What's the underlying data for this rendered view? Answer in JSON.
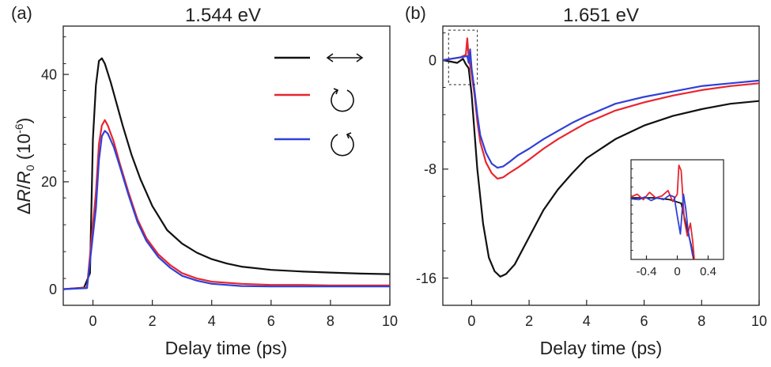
{
  "chart_data": [
    {
      "type": "line",
      "panel_label": "(a)",
      "title": "1.544 eV",
      "xlabel": "Delay time (ps)",
      "ylabel_parts": [
        "Δ",
        "R",
        "/",
        "R",
        "0",
        " (10",
        "-6",
        ")"
      ],
      "xlim": [
        -1,
        10
      ],
      "ylim": [
        -3,
        49
      ],
      "xticks": [
        0,
        2,
        4,
        6,
        8,
        10
      ],
      "yticks": [
        0,
        20,
        40
      ],
      "grid": false,
      "legend_location": "top-right",
      "legend": [
        {
          "color": "#111111",
          "symbol": "linear-double-arrow-icon"
        },
        {
          "color": "#e8262f",
          "symbol": "counterclockwise-circle-icon"
        },
        {
          "color": "#3040d8",
          "symbol": "clockwise-circle-icon"
        }
      ],
      "series": [
        {
          "color": "#111111",
          "x": [
            -1,
            -0.3,
            -0.1,
            0,
            0.1,
            0.2,
            0.3,
            0.4,
            0.6,
            0.8,
            1.0,
            1.3,
            1.6,
            2.0,
            2.5,
            3.0,
            3.5,
            4.0,
            4.5,
            5.0,
            6.0,
            7.0,
            8.0,
            9.0,
            10.0
          ],
          "y": [
            0,
            0.3,
            3,
            28,
            38,
            42.5,
            43,
            42,
            38.5,
            34.5,
            30.5,
            25,
            20.5,
            15.5,
            11,
            8.5,
            6.8,
            5.6,
            4.8,
            4.2,
            3.6,
            3.3,
            3.1,
            2.9,
            2.8
          ]
        },
        {
          "color": "#e8262f",
          "x": [
            -1,
            -0.2,
            0.1,
            0.2,
            0.3,
            0.4,
            0.5,
            0.7,
            0.9,
            1.2,
            1.5,
            1.8,
            2.2,
            2.6,
            3.0,
            3.5,
            4.0,
            5.0,
            6.0,
            7.0,
            8.0,
            9.0,
            10.0
          ],
          "y": [
            0,
            0.3,
            18,
            27,
            30.5,
            31.5,
            30.5,
            27.5,
            23.5,
            18,
            13,
            9.5,
            6.5,
            4.5,
            3,
            2,
            1.4,
            1.0,
            0.8,
            0.8,
            0.7,
            0.7,
            0.7
          ]
        },
        {
          "color": "#3040d8",
          "x": [
            -1,
            -0.2,
            0.1,
            0.2,
            0.3,
            0.4,
            0.5,
            0.7,
            0.9,
            1.2,
            1.5,
            1.8,
            2.2,
            2.6,
            3.0,
            3.5,
            4.0,
            5.0,
            6.0,
            7.0,
            8.0,
            9.0,
            10.0
          ],
          "y": [
            0,
            0.2,
            15,
            24,
            28.5,
            29.5,
            29,
            26.5,
            23,
            17.5,
            12.5,
            9,
            6,
            4,
            2.5,
            1.6,
            1.0,
            0.6,
            0.5,
            0.5,
            0.5,
            0.5,
            0.5
          ]
        }
      ]
    },
    {
      "type": "line",
      "panel_label": "(b)",
      "title": "1.651 eV",
      "xlabel": "Delay time (ps)",
      "xlim": [
        -1,
        10
      ],
      "ylim": [
        -18,
        2.5
      ],
      "xticks": [
        0,
        2,
        4,
        6,
        8,
        10
      ],
      "yticks": [
        -16,
        -8,
        0
      ],
      "grid": false,
      "series": [
        {
          "color": "#111111",
          "x": [
            -1,
            -0.5,
            -0.3,
            -0.2,
            -0.1,
            0,
            0.2,
            0.4,
            0.6,
            0.8,
            1.0,
            1.2,
            1.5,
            2.0,
            2.5,
            3.0,
            3.5,
            4.0,
            5.0,
            6.0,
            7.0,
            8.0,
            9.0,
            10.0
          ],
          "y": [
            0,
            -0.2,
            0.1,
            -0.3,
            -0.6,
            -2.5,
            -8,
            -12,
            -14.5,
            -15.5,
            -15.9,
            -15.7,
            -15,
            -13,
            -11,
            -9.5,
            -8.3,
            -7.2,
            -5.8,
            -4.8,
            -4.1,
            -3.6,
            -3.2,
            -3.0
          ]
        },
        {
          "color": "#e8262f",
          "x": [
            -1,
            -0.4,
            -0.2,
            -0.15,
            -0.1,
            0,
            0.1,
            0.2,
            0.3,
            0.5,
            0.7,
            0.9,
            1.1,
            1.3,
            1.6,
            2.0,
            2.5,
            3.0,
            3.5,
            4.0,
            5.0,
            6.0,
            7.0,
            8.0,
            9.0,
            10.0
          ],
          "y": [
            0,
            0.2,
            0.4,
            1.6,
            0.2,
            -1,
            -2.5,
            -4.5,
            -6,
            -7.5,
            -8.3,
            -8.7,
            -8.6,
            -8.3,
            -7.9,
            -7.3,
            -6.5,
            -5.8,
            -5.2,
            -4.6,
            -3.7,
            -3.1,
            -2.6,
            -2.2,
            -1.9,
            -1.7
          ]
        },
        {
          "color": "#3040d8",
          "x": [
            -1,
            -0.4,
            -0.15,
            -0.1,
            -0.05,
            0,
            0.1,
            0.2,
            0.3,
            0.5,
            0.7,
            0.9,
            1.1,
            1.3,
            1.6,
            2.0,
            2.5,
            3.0,
            3.5,
            4.0,
            5.0,
            6.0,
            7.0,
            8.0,
            9.0,
            10.0
          ],
          "y": [
            0,
            0.2,
            0.3,
            -0.2,
            0.8,
            -0.6,
            -2.2,
            -4,
            -5.5,
            -6.8,
            -7.6,
            -7.9,
            -7.8,
            -7.5,
            -7.0,
            -6.5,
            -5.8,
            -5.2,
            -4.6,
            -4.1,
            -3.2,
            -2.7,
            -2.3,
            -1.9,
            -1.7,
            -1.5
          ]
        }
      ],
      "inset": {
        "xlim": [
          -0.6,
          0.6
        ],
        "ylim": [
          -4,
          1.5
        ],
        "xticks": [
          -0.4,
          0,
          0.4
        ],
        "xtick_labels": [
          "-0.4",
          "0",
          "0.4"
        ],
        "zoom_box": {
          "xlim": [
            -0.8,
            0.2
          ],
          "ylim": [
            -1.8,
            2.2
          ]
        },
        "series": [
          {
            "color": "#111111",
            "x": [
              -0.6,
              -0.3,
              -0.1,
              0.05,
              0.12,
              0.18,
              0.22
            ],
            "y": [
              -0.6,
              -0.6,
              -0.7,
              -0.9,
              -2.2,
              -3.2,
              -4.2
            ]
          },
          {
            "color": "#e8262f",
            "x": [
              -0.6,
              -0.52,
              -0.44,
              -0.36,
              -0.28,
              -0.2,
              -0.12,
              -0.06,
              0.0,
              0.02,
              0.05,
              0.09,
              0.13,
              0.17,
              0.2,
              0.22
            ],
            "y": [
              -0.55,
              -0.4,
              -0.7,
              -0.3,
              -0.6,
              -0.5,
              -0.2,
              -0.8,
              -0.4,
              1.2,
              0.9,
              -1.8,
              -2.7,
              -2.0,
              -3.0,
              -4.0
            ]
          },
          {
            "color": "#3040d8",
            "x": [
              -0.6,
              -0.5,
              -0.42,
              -0.34,
              -0.26,
              -0.18,
              -0.1,
              -0.04,
              0.0,
              0.04,
              0.08,
              0.11,
              0.14,
              0.17,
              0.2
            ],
            "y": [
              -0.65,
              -0.7,
              -0.55,
              -0.75,
              -0.6,
              -0.7,
              -0.45,
              -0.55,
              -1.6,
              -2.6,
              -0.4,
              -1.2,
              -2.4,
              -3.1,
              -3.8
            ]
          }
        ]
      }
    }
  ]
}
